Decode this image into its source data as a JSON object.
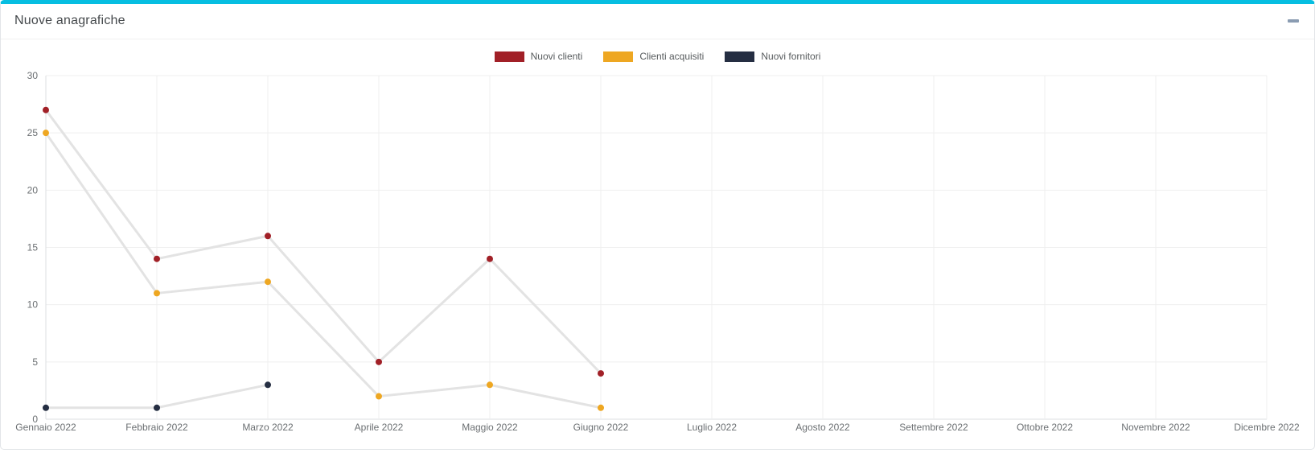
{
  "card": {
    "title": "Nuove anagrafiche",
    "accent_color": "#06bee1",
    "collapse_icon": "minus"
  },
  "chart_data": {
    "type": "line",
    "title": "Nuove anagrafiche",
    "categories": [
      "Gennaio 2022",
      "Febbraio 2022",
      "Marzo 2022",
      "Aprile 2022",
      "Maggio 2022",
      "Giugno 2022",
      "Luglio 2022",
      "Agosto 2022",
      "Settembre 2022",
      "Ottobre 2022",
      "Novembre 2022",
      "Dicembre 2022"
    ],
    "series": [
      {
        "name": "Nuovi clienti",
        "color": "#a12027",
        "values": [
          27,
          14,
          16,
          5,
          14,
          4,
          null,
          null,
          null,
          null,
          null,
          null
        ]
      },
      {
        "name": "Clienti acquisiti",
        "color": "#eea722",
        "values": [
          25,
          11,
          12,
          2,
          3,
          1,
          null,
          null,
          null,
          null,
          null,
          null
        ]
      },
      {
        "name": "Nuovi fornitori",
        "color": "#252e42",
        "values": [
          1,
          1,
          3,
          null,
          null,
          null,
          null,
          null,
          null,
          null,
          null,
          null
        ]
      }
    ],
    "ylim": [
      0,
      30
    ],
    "y_ticks": [
      0,
      5,
      10,
      15,
      20,
      25,
      30
    ],
    "xlabel": "",
    "ylabel": "",
    "grid": true,
    "legend_position": "top",
    "connector_line_color": "#e3e3e3",
    "grid_color": "#efefef",
    "axis_color": "#dcdfe2"
  }
}
